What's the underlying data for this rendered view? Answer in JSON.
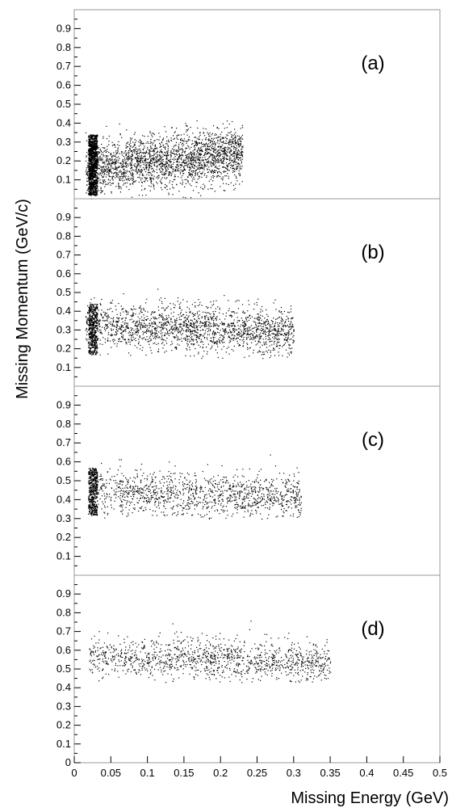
{
  "chart_data": {
    "type": "scatter",
    "xlabel": "Missing Energy (GeV)",
    "ylabel": "Missing Momentum (GeV/c)",
    "xlim": [
      0,
      0.5
    ],
    "ylim": [
      0,
      1.0
    ],
    "x_ticks": [
      "0",
      "0.05",
      "0.1",
      "0.15",
      "0.2",
      "0.25",
      "0.3",
      "0.35",
      "0.4",
      "0.45",
      "0.5"
    ],
    "y_ticks": [
      "0.1",
      "0.2",
      "0.3",
      "0.4",
      "0.5",
      "0.6",
      "0.7",
      "0.8",
      "0.9"
    ],
    "y_ticks_bottom_panel": [
      "0",
      "0.1",
      "0.2",
      "0.3",
      "0.4",
      "0.5",
      "0.6",
      "0.7",
      "0.8",
      "0.9"
    ],
    "grid": false,
    "panels": [
      {
        "label": "(a)",
        "x_range": [
          0.015,
          0.23
        ],
        "y_range": [
          0.0,
          0.42
        ],
        "center_y": 0.16,
        "dense_edge_x": 0.025,
        "density": "very high",
        "points": [
          {
            "x": 0.02,
            "y": 0.05
          },
          {
            "x": 0.02,
            "y": 0.28
          },
          {
            "x": 0.05,
            "y": 0.12
          },
          {
            "x": 0.1,
            "y": 0.15
          },
          {
            "x": 0.15,
            "y": 0.2
          },
          {
            "x": 0.2,
            "y": 0.28
          },
          {
            "x": 0.23,
            "y": 0.3
          }
        ]
      },
      {
        "label": "(b)",
        "x_range": [
          0.015,
          0.3
        ],
        "y_range": [
          0.15,
          0.52
        ],
        "center_y": 0.33,
        "dense_edge_x": 0.025,
        "density": "high",
        "points": [
          {
            "x": 0.02,
            "y": 0.2
          },
          {
            "x": 0.02,
            "y": 0.45
          },
          {
            "x": 0.1,
            "y": 0.33
          },
          {
            "x": 0.2,
            "y": 0.32
          },
          {
            "x": 0.27,
            "y": 0.3
          }
        ]
      },
      {
        "label": "(c)",
        "x_range": [
          0.02,
          0.31
        ],
        "y_range": [
          0.3,
          0.65
        ],
        "center_y": 0.45,
        "dense_edge_x": 0.025,
        "density": "medium",
        "points": [
          {
            "x": 0.02,
            "y": 0.48
          },
          {
            "x": 0.1,
            "y": 0.46
          },
          {
            "x": 0.2,
            "y": 0.43
          },
          {
            "x": 0.29,
            "y": 0.41
          }
        ]
      },
      {
        "label": "(d)",
        "x_range": [
          0.02,
          0.35
        ],
        "y_range": [
          0.43,
          0.77
        ],
        "center_y": 0.57,
        "dense_edge_x": null,
        "density": "medium",
        "points": [
          {
            "x": 0.05,
            "y": 0.6
          },
          {
            "x": 0.15,
            "y": 0.58
          },
          {
            "x": 0.25,
            "y": 0.55
          },
          {
            "x": 0.32,
            "y": 0.54
          }
        ]
      }
    ]
  }
}
